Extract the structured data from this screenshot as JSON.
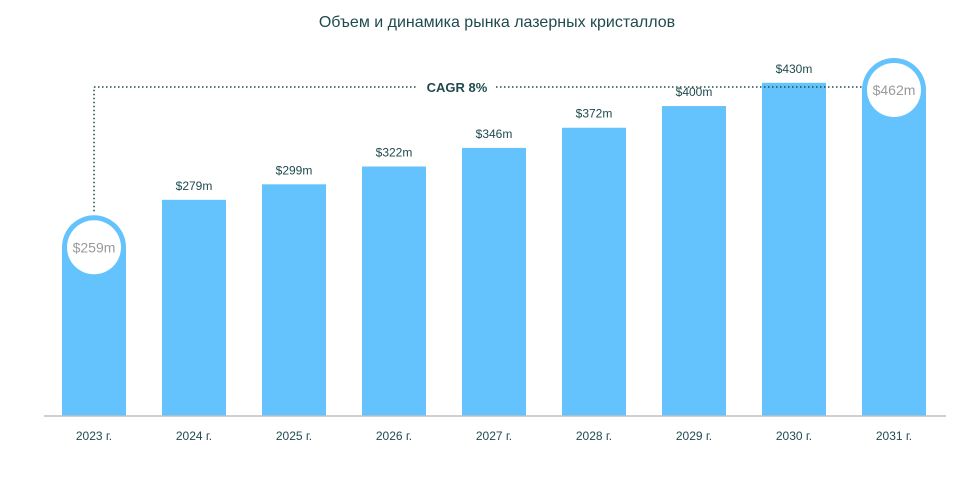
{
  "chart_data": {
    "type": "bar",
    "title": "Объем и динамика рынка лазерных кристаллов",
    "categories": [
      "2023 г.",
      "2024 г.",
      "2025 г.",
      "2026 г.",
      "2027 г.",
      "2028 г.",
      "2029 г.",
      "2030 г.",
      "2031 г."
    ],
    "values": [
      259,
      279,
      299,
      322,
      346,
      372,
      400,
      430,
      462
    ],
    "value_labels": [
      "$259m",
      "$279m",
      "$299m",
      "$322m",
      "$346m",
      "$372m",
      "$400m",
      "$430m",
      "$462m"
    ],
    "highlighted": [
      "2023 г.",
      "2031 г."
    ],
    "annotation": "CAGR 8%",
    "ylim": [
      0,
      462
    ],
    "grid": false,
    "colors": {
      "bar": "#64c3fc",
      "text": "#1f4a4f",
      "highlight_text": "#9a9a9a",
      "axis": "#bfbfbf"
    }
  }
}
